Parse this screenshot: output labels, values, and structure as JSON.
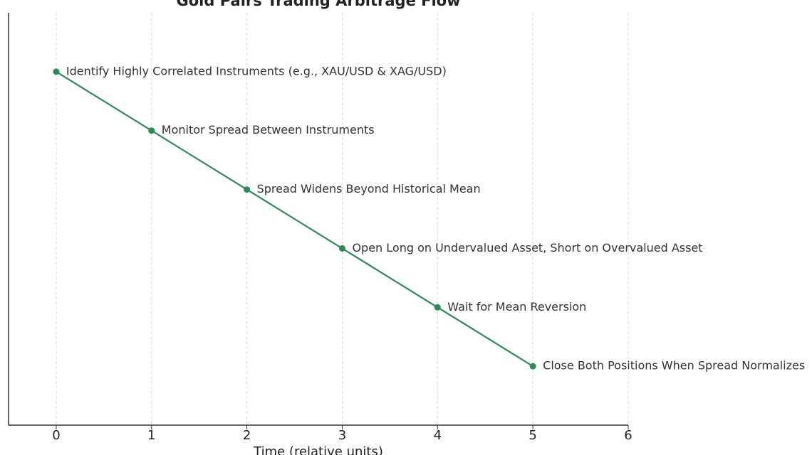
{
  "chart_data": {
    "type": "line",
    "title": "Gold Pairs Trading Arbitrage Flow",
    "x_label": "Time (relative units)",
    "x": [
      0,
      1,
      2,
      3,
      4,
      5
    ],
    "values": [
      6,
      5,
      4,
      3,
      2,
      1
    ],
    "labels": [
      "Identify Highly Correlated Instruments (e.g., XAU/USD & XAG/USD)",
      "Monitor Spread Between Instruments",
      "Spread Widens Beyond Historical Mean",
      "Open Long on Undervalued Asset, Short on Overvalued Asset",
      "Wait for Mean Reversion",
      "Close Both Positions When Spread Normalizes"
    ],
    "color": "#2e8b57",
    "xlim": [
      -0.5,
      6
    ],
    "xticks": [
      0,
      1,
      2,
      3,
      4,
      5,
      6
    ],
    "ylim": [
      0,
      7
    ],
    "grid": true
  }
}
